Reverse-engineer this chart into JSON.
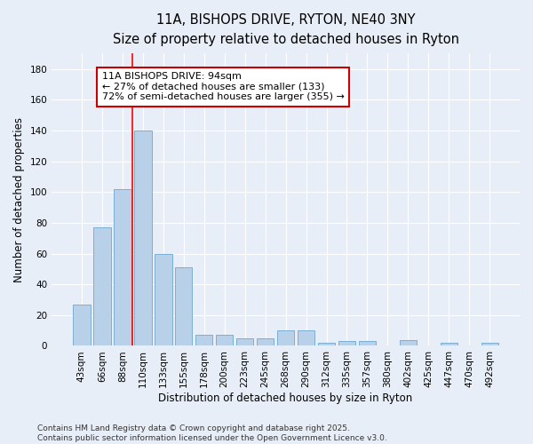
{
  "title_line1": "11A, BISHOPS DRIVE, RYTON, NE40 3NY",
  "title_line2": "Size of property relative to detached houses in Ryton",
  "xlabel": "Distribution of detached houses by size in Ryton",
  "ylabel": "Number of detached properties",
  "categories": [
    "43sqm",
    "66sqm",
    "88sqm",
    "110sqm",
    "133sqm",
    "155sqm",
    "178sqm",
    "200sqm",
    "223sqm",
    "245sqm",
    "268sqm",
    "290sqm",
    "312sqm",
    "335sqm",
    "357sqm",
    "380sqm",
    "402sqm",
    "425sqm",
    "447sqm",
    "470sqm",
    "492sqm"
  ],
  "values": [
    27,
    77,
    102,
    140,
    60,
    51,
    7,
    7,
    5,
    5,
    10,
    10,
    2,
    3,
    3,
    0,
    4,
    0,
    2,
    0,
    2
  ],
  "bar_color": "#b8d0e8",
  "bar_edge_color": "#7bafd4",
  "red_line_x": 2.5,
  "annotation_line1": "11A BISHOPS DRIVE: 94sqm",
  "annotation_line2": "← 27% of detached houses are smaller (133)",
  "annotation_line3": "72% of semi-detached houses are larger (355) →",
  "annotation_box_color": "#ffffff",
  "annotation_box_edge_color": "#cc0000",
  "ylim": [
    0,
    190
  ],
  "yticks": [
    0,
    20,
    40,
    60,
    80,
    100,
    120,
    140,
    160,
    180
  ],
  "footnote": "Contains HM Land Registry data © Crown copyright and database right 2025.\nContains public sector information licensed under the Open Government Licence v3.0.",
  "bg_color": "#e8eef7",
  "grid_color": "#ffffff",
  "title_fontsize": 10.5,
  "subtitle_fontsize": 9.5,
  "tick_fontsize": 7.5,
  "label_fontsize": 8.5,
  "annotation_fontsize": 8,
  "footnote_fontsize": 6.5
}
